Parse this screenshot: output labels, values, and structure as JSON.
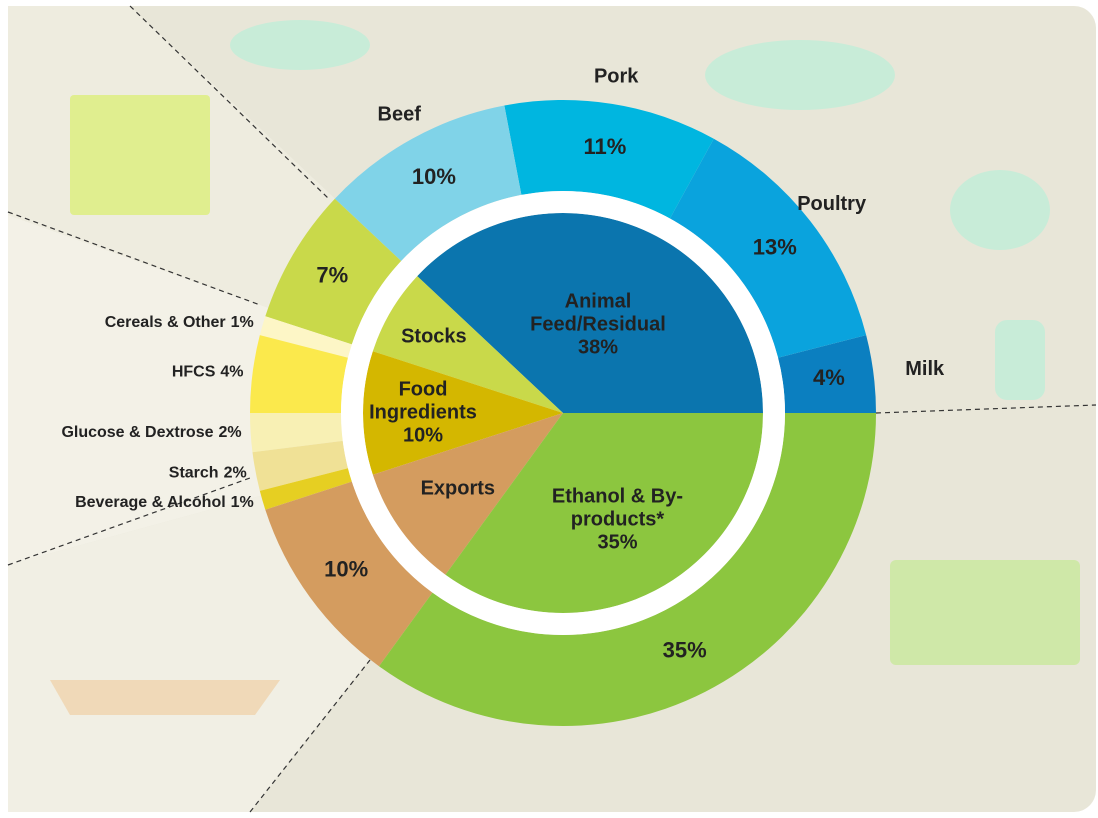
{
  "chart_data": {
    "type": "sunburst",
    "inner": {
      "categories": [
        "Animal Feed/Residual",
        "Stocks",
        "Food Ingredients",
        "Exports",
        "Ethanol & By-products*"
      ],
      "values": [
        38,
        7,
        10,
        10,
        35
      ],
      "value_labels": [
        "38%",
        null,
        "10%",
        null,
        "35%"
      ],
      "colors": [
        "#0b75ae",
        "#c9d94a",
        "#d4b700",
        "#d49c5f",
        "#8cc63f"
      ]
    },
    "outer": {
      "categories": [
        "Milk",
        "Poultry",
        "Pork",
        "Beef",
        null,
        "Cereals & Other",
        "HFCS",
        "Glucose & Dextrose",
        "Starch",
        "Beverage & Alcohol",
        null,
        null
      ],
      "values": [
        4,
        13,
        11,
        10,
        7,
        1,
        4,
        2,
        2,
        1,
        10,
        35
      ],
      "value_labels": [
        "4%",
        "13%",
        "11%",
        "10%",
        "7%",
        "1%",
        "4%",
        "2%",
        "2%",
        "1%",
        "10%",
        "35%"
      ],
      "colors": [
        "#0b7fc0",
        "#0aa3dd",
        "#00b6e0",
        "#80d3e8",
        "#c9d94a",
        "#fdf6c6",
        "#fbe94c",
        "#f8f0b4",
        "#f0e196",
        "#e6cf22",
        "#d49c5f",
        "#8cc63f"
      ]
    }
  }
}
